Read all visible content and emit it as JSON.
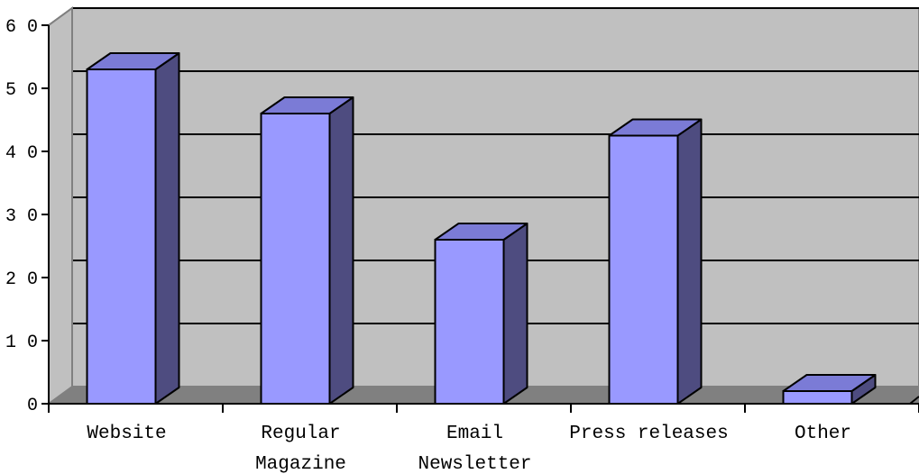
{
  "chart_data": {
    "type": "bar",
    "title": "",
    "xlabel": "",
    "ylabel": "",
    "categories": [
      [
        "Website"
      ],
      [
        "Regular",
        "Magazine"
      ],
      [
        "Email",
        "Newsletter"
      ],
      [
        "Press releases"
      ],
      [
        "Other"
      ]
    ],
    "values": [
      53,
      46,
      26,
      42.5,
      2
    ],
    "ylim": [
      0,
      60
    ],
    "yticks": [
      0,
      10,
      20,
      30,
      40,
      50,
      60
    ],
    "ytick_labels": [
      "0",
      "1 0",
      "2 0",
      "3 0",
      "4 0",
      "5 0",
      "6 0"
    ],
    "grid": true,
    "three_d": true,
    "legend": "none",
    "colors": {
      "bar_front": "#9999ff",
      "bar_top": "#7b7bd6",
      "bar_side": "#4e4c80",
      "wall": "#c0c0c0",
      "floor": "#808080",
      "gridline": "#000000"
    }
  }
}
